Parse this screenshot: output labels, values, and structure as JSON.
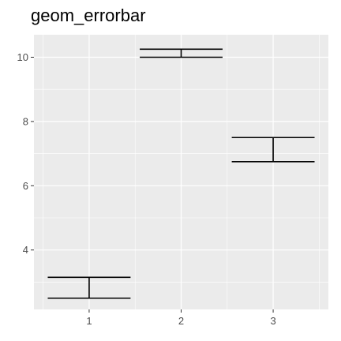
{
  "chart_data": {
    "type": "errorbar",
    "title": "geom_errorbar",
    "xlabel": "",
    "ylabel": "",
    "categories": [
      "1",
      "2",
      "3"
    ],
    "errorbars": [
      {
        "x": "1",
        "ymin": 2.5,
        "ymax": 3.15
      },
      {
        "x": "2",
        "ymin": 10.0,
        "ymax": 10.25
      },
      {
        "x": "3",
        "ymin": 6.75,
        "ymax": 7.5
      }
    ],
    "ylim": [
      2.15,
      10.7
    ],
    "y_ticks": [
      4,
      6,
      8,
      10
    ],
    "y_tick_labels": [
      "4",
      "6",
      "8",
      "10"
    ],
    "y_minor_ticks": [
      3,
      5,
      7,
      9
    ],
    "x_tick_labels": [
      "1",
      "2",
      "3"
    ],
    "grid": true,
    "colors": {
      "panel_background": "#ebebeb",
      "grid_line": "#ffffff",
      "errorbar": "#000000",
      "axis_text": "#4d4d4d",
      "tick_mark": "#333333"
    }
  }
}
